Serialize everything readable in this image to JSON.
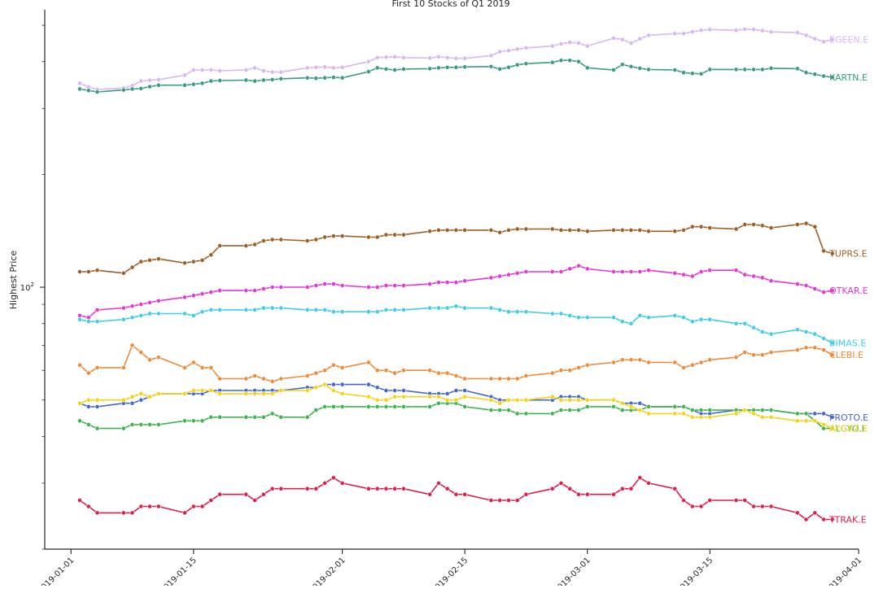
{
  "chart_data": {
    "type": "line",
    "title": "First 10 Stocks of Q1 2019",
    "xlabel": "",
    "ylabel": "Highest Price",
    "y_scale": "log",
    "ylim": [
      20,
      550
    ],
    "xlim": [
      "2018-12-29",
      "2019-04-01"
    ],
    "y_tick_labels": [
      {
        "base": "10",
        "exp": "2",
        "value": 100
      }
    ],
    "x_tick_labels": [
      "2019-01-01",
      "2019-01-15",
      "2019-02-01",
      "2019-02-15",
      "2019-03-01",
      "2019-03-15",
      "2019-04-01"
    ],
    "grid": false,
    "legend": "inline labels at line ends",
    "x": [
      "2019-01-02",
      "2019-01-03",
      "2019-01-04",
      "2019-01-07",
      "2019-01-08",
      "2019-01-09",
      "2019-01-10",
      "2019-01-11",
      "2019-01-14",
      "2019-01-15",
      "2019-01-16",
      "2019-01-17",
      "2019-01-18",
      "2019-01-21",
      "2019-01-22",
      "2019-01-23",
      "2019-01-24",
      "2019-01-25",
      "2019-01-28",
      "2019-01-29",
      "2019-01-30",
      "2019-01-31",
      "2019-02-01",
      "2019-02-04",
      "2019-02-05",
      "2019-02-06",
      "2019-02-07",
      "2019-02-08",
      "2019-02-11",
      "2019-02-12",
      "2019-02-13",
      "2019-02-14",
      "2019-02-15",
      "2019-02-18",
      "2019-02-19",
      "2019-02-20",
      "2019-02-21",
      "2019-02-22",
      "2019-02-25",
      "2019-02-26",
      "2019-02-27",
      "2019-02-28",
      "2019-03-01",
      "2019-03-04",
      "2019-03-05",
      "2019-03-06",
      "2019-03-07",
      "2019-03-08",
      "2019-03-11",
      "2019-03-12",
      "2019-03-13",
      "2019-03-14",
      "2019-03-15",
      "2019-03-18",
      "2019-03-19",
      "2019-03-20",
      "2019-03-21",
      "2019-03-22",
      "2019-03-25",
      "2019-03-26",
      "2019-03-27",
      "2019-03-28",
      "2019-03-29"
    ],
    "series": [
      {
        "name": "EGEEN.E",
        "color": "#d7b6f2",
        "values": [
          350,
          342,
          337,
          340,
          345,
          355,
          357,
          358,
          368,
          380,
          380,
          380,
          378,
          380,
          385,
          378,
          375,
          375,
          385,
          386,
          387,
          385,
          386,
          400,
          410,
          411,
          412,
          410,
          409,
          412,
          410,
          408,
          408,
          415,
          425,
          428,
          432,
          435,
          440,
          446,
          450,
          448,
          440,
          462,
          458,
          448,
          460,
          470,
          475,
          475,
          480,
          485,
          487,
          485,
          488,
          487,
          484,
          480,
          478,
          470,
          460,
          452,
          458
        ]
      },
      {
        "name": "KARTN.E",
        "color": "#3a9a82",
        "values": [
          338,
          335,
          332,
          336,
          338,
          339,
          343,
          346,
          346,
          348,
          350,
          355,
          356,
          357,
          355,
          357,
          358,
          360,
          362,
          361,
          362,
          363,
          362,
          376,
          385,
          382,
          380,
          382,
          383,
          385,
          386,
          386,
          387,
          388,
          382,
          386,
          392,
          395,
          398,
          403,
          403,
          400,
          385,
          380,
          393,
          388,
          384,
          381,
          380,
          374,
          372,
          371,
          381,
          381,
          381,
          381,
          381,
          384,
          383,
          374,
          370,
          366,
          363
        ]
      },
      {
        "name": "TUPRS.E",
        "color": "#9b5e24",
        "values": [
          110,
          110,
          111,
          109,
          113,
          117,
          118,
          119,
          116,
          117,
          118,
          122,
          129,
          129,
          130,
          133,
          134,
          134,
          133,
          134,
          136,
          137,
          137,
          136,
          136,
          138,
          138,
          138,
          141,
          142,
          142,
          142,
          142,
          142,
          140,
          142,
          143,
          143,
          143,
          142,
          142,
          142,
          141,
          142,
          142,
          142,
          142,
          141,
          141,
          142,
          145,
          145,
          144,
          143,
          147,
          147,
          146,
          144,
          147,
          148,
          145,
          125,
          123
        ]
      },
      {
        "name": "OTKAR.E",
        "color": "#e835d8",
        "values": [
          84,
          83,
          87,
          88,
          89,
          90,
          91,
          92,
          94,
          95,
          96,
          97,
          98,
          98,
          98,
          99,
          100,
          100,
          100,
          101,
          102,
          102,
          101,
          100,
          100,
          101,
          101,
          101,
          102,
          103,
          103,
          103,
          104,
          106,
          107,
          108,
          109,
          110,
          110,
          110,
          112,
          114,
          112,
          110,
          110,
          110,
          110,
          111,
          109,
          108,
          107,
          110,
          111,
          111,
          108,
          107,
          106,
          104,
          102,
          101,
          99,
          97,
          98
        ]
      },
      {
        "name": "BIMAS.E",
        "color": "#3dcde8",
        "values": [
          82,
          81,
          81,
          82,
          83,
          84,
          85,
          85,
          85,
          84,
          86,
          87,
          87,
          87,
          87,
          88,
          88,
          88,
          87,
          87,
          87,
          86,
          86,
          86,
          86,
          87,
          87,
          87,
          88,
          88,
          88,
          89,
          88,
          88,
          87,
          86,
          86,
          86,
          85,
          85,
          84,
          83,
          83,
          83,
          81,
          80,
          84,
          83,
          84,
          83,
          81,
          82,
          82,
          80,
          80,
          78,
          76,
          75,
          77,
          76,
          75,
          73,
          71
        ]
      },
      {
        "name": "CLEBI.E",
        "color": "#f08a38",
        "values": [
          62,
          59,
          61,
          61,
          70,
          67,
          64,
          65,
          61,
          63,
          61,
          61,
          57,
          57,
          58,
          57,
          56,
          57,
          58,
          59,
          60,
          62,
          61,
          63,
          60,
          60,
          59,
          60,
          60,
          59,
          59,
          58,
          57,
          57,
          57,
          57,
          57,
          58,
          59,
          60,
          60,
          61,
          62,
          63,
          64,
          64,
          64,
          63,
          63,
          61,
          62,
          63,
          64,
          65,
          67,
          66,
          66,
          67,
          68,
          69,
          69,
          68,
          66
        ]
      },
      {
        "name": "FROTO.E",
        "color": "#4466cc",
        "values": [
          49,
          48,
          48,
          49,
          49,
          50,
          51,
          52,
          52,
          52,
          52,
          53,
          53,
          53,
          53,
          53,
          53,
          53,
          54,
          54,
          55,
          55,
          55,
          55,
          54,
          53,
          53,
          53,
          52,
          52,
          52,
          53,
          53,
          51,
          50,
          50,
          50,
          50,
          50,
          51,
          51,
          51,
          50,
          50,
          49,
          49,
          49,
          48,
          48,
          48,
          47,
          46,
          46,
          47,
          47,
          47,
          47,
          47,
          46,
          46,
          46,
          46,
          45
        ]
      },
      {
        "name": "ALGYO.E",
        "color": "#3fb34f",
        "values": [
          44,
          43,
          42,
          42,
          43,
          43,
          43,
          43,
          44,
          44,
          44,
          45,
          45,
          45,
          45,
          45,
          46,
          45,
          45,
          47,
          48,
          48,
          48,
          48,
          48,
          48,
          48,
          48,
          48,
          49,
          49,
          49,
          48,
          47,
          47,
          47,
          46,
          46,
          46,
          47,
          47,
          47,
          48,
          48,
          47,
          47,
          47,
          48,
          48,
          48,
          47,
          47,
          47,
          47,
          47,
          47,
          47,
          47,
          46,
          46,
          44,
          42,
          42
        ]
      },
      {
        "name": "AYGAZ.E",
        "color": "#f5d315",
        "values": [
          49,
          50,
          50,
          50,
          51,
          52,
          51,
          52,
          52,
          53,
          53,
          53,
          52,
          52,
          52,
          52,
          52,
          53,
          53,
          54,
          55,
          53,
          52,
          51,
          50,
          50,
          51,
          51,
          51,
          51,
          50,
          50,
          51,
          50,
          49,
          50,
          50,
          50,
          51,
          50,
          50,
          50,
          50,
          50,
          49,
          48,
          47,
          46,
          46,
          46,
          45,
          45,
          45,
          46,
          47,
          46,
          45,
          45,
          44,
          44,
          44,
          43,
          42
        ]
      },
      {
        "name": "TTRAK.E",
        "color": "#dc1e4a",
        "values": [
          27,
          26,
          25,
          25,
          25,
          26,
          26,
          26,
          25,
          26,
          26,
          27,
          28,
          28,
          27,
          28,
          29,
          29,
          29,
          29,
          30,
          31,
          30,
          29,
          29,
          29,
          29,
          29,
          28,
          30,
          29,
          28,
          28,
          27,
          27,
          27,
          27,
          28,
          29,
          30,
          29,
          28,
          28,
          28,
          29,
          29,
          31,
          30,
          29,
          27,
          26,
          26,
          27,
          27,
          27,
          26,
          26,
          26,
          25,
          24,
          25,
          24,
          24
        ]
      }
    ]
  }
}
